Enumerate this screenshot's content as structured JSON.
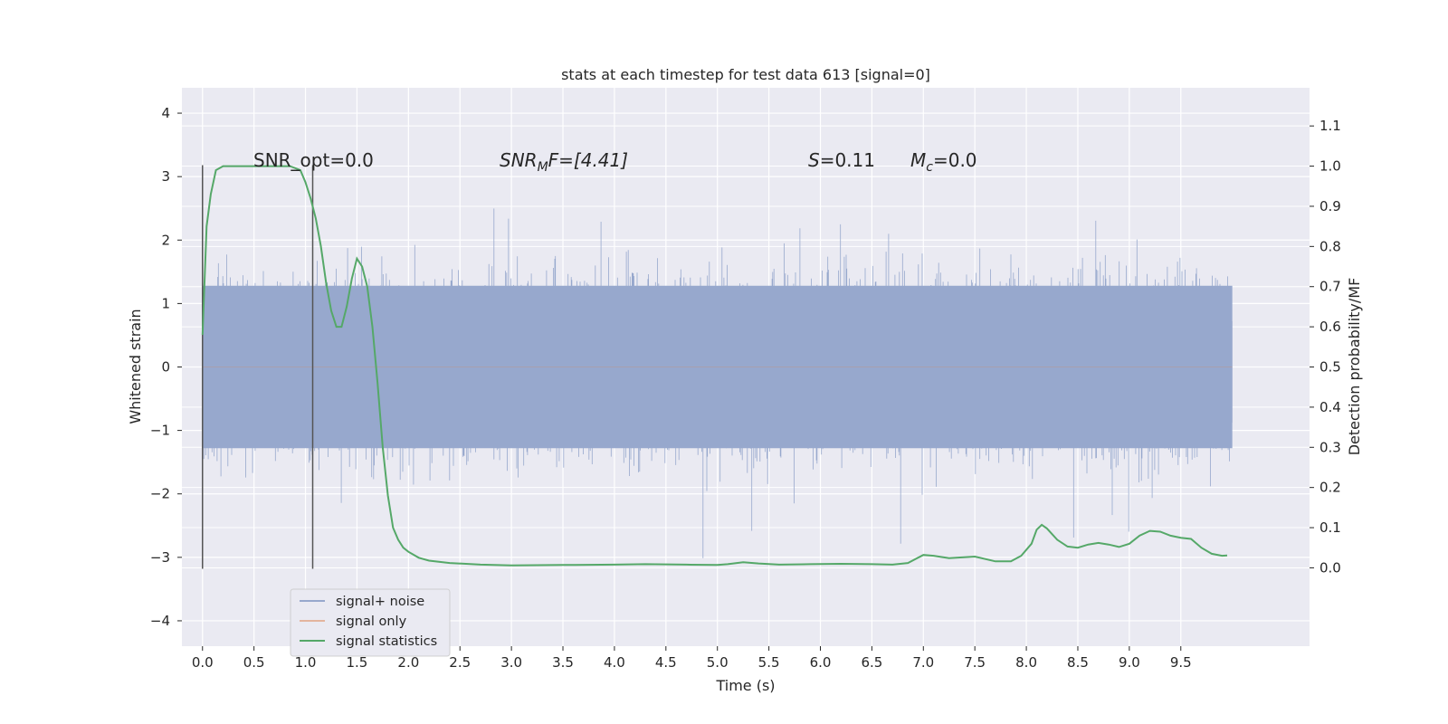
{
  "chart_data": {
    "type": "line",
    "title": "stats at each timestep for test data 613 [signal=0]",
    "xlabel": "Time (s)",
    "ylabel": "Whitened strain",
    "y2label": "Detection probability/MF",
    "xlim": [
      -0.2,
      10.75
    ],
    "ylim": [
      -4.4,
      4.4
    ],
    "y2lim": [
      -0.195,
      1.195
    ],
    "xticks": [
      "0.0",
      "0.5",
      "1.0",
      "1.5",
      "2.0",
      "2.5",
      "3.0",
      "3.5",
      "4.0",
      "4.5",
      "5.0",
      "5.5",
      "6.0",
      "6.5",
      "7.0",
      "7.5",
      "8.0",
      "8.5",
      "9.0",
      "9.5"
    ],
    "yticks": [
      "4",
      "3",
      "2",
      "1",
      "0",
      "−1",
      "−2",
      "−3",
      "−4"
    ],
    "y2ticks": [
      "1.1",
      "1.0",
      "0.9",
      "0.8",
      "0.7",
      "0.6",
      "0.5",
      "0.4",
      "0.3",
      "0.2",
      "0.1",
      "0.0"
    ],
    "grid": true,
    "legend_position": "lower-left",
    "annotations": {
      "snr_opt": "SNR_opt=0.0",
      "snr_mf_base": "SNR",
      "snr_mf_sub": "M",
      "snr_mf_rest": "F=[4.41]",
      "s_italic": "S",
      "s_value": "=0.11",
      "mc_base": "M",
      "mc_sub": "c",
      "mc_value": "=0.0"
    },
    "vertical_markers": [
      0.0,
      1.07
    ],
    "series": [
      {
        "name": "signal+ noise",
        "color": "#97a8cd",
        "axis": "left",
        "x_range": [
          0.0,
          10.0
        ],
        "envelope_p99": 1.9,
        "envelope_extreme": 3.5
      },
      {
        "name": "signal only",
        "color": "#dd8452",
        "axis": "left",
        "x": [
          0.0,
          10.0
        ],
        "y": [
          0.0,
          0.0
        ]
      },
      {
        "name": "signal statistics",
        "color": "#55a868",
        "axis": "right",
        "x": [
          0.0,
          0.04,
          0.08,
          0.13,
          0.2,
          0.3,
          0.5,
          0.7,
          0.85,
          0.95,
          1.0,
          1.05,
          1.1,
          1.15,
          1.2,
          1.25,
          1.3,
          1.35,
          1.4,
          1.45,
          1.5,
          1.55,
          1.6,
          1.65,
          1.7,
          1.75,
          1.8,
          1.85,
          1.9,
          1.95,
          2.0,
          2.1,
          2.2,
          2.4,
          2.7,
          3.0,
          3.5,
          4.0,
          4.3,
          4.7,
          5.0,
          5.1,
          5.25,
          5.4,
          5.6,
          5.9,
          6.2,
          6.5,
          6.7,
          6.85,
          7.0,
          7.1,
          7.25,
          7.5,
          7.7,
          7.85,
          7.95,
          8.05,
          8.1,
          8.15,
          8.2,
          8.3,
          8.4,
          8.5,
          8.6,
          8.7,
          8.8,
          8.9,
          9.0,
          9.1,
          9.2,
          9.3,
          9.4,
          9.5,
          9.6,
          9.7,
          9.8,
          9.9,
          9.95
        ],
        "y": [
          0.58,
          0.85,
          0.93,
          0.99,
          1.0,
          1.0,
          1.0,
          1.0,
          1.0,
          0.99,
          0.96,
          0.92,
          0.87,
          0.8,
          0.71,
          0.64,
          0.6,
          0.6,
          0.65,
          0.72,
          0.77,
          0.75,
          0.7,
          0.6,
          0.46,
          0.3,
          0.18,
          0.1,
          0.07,
          0.05,
          0.04,
          0.025,
          0.018,
          0.012,
          0.008,
          0.006,
          0.007,
          0.008,
          0.009,
          0.008,
          0.007,
          0.009,
          0.014,
          0.011,
          0.008,
          0.009,
          0.01,
          0.009,
          0.008,
          0.012,
          0.032,
          0.03,
          0.024,
          0.028,
          0.016,
          0.016,
          0.03,
          0.06,
          0.095,
          0.107,
          0.098,
          0.07,
          0.053,
          0.05,
          0.058,
          0.062,
          0.058,
          0.052,
          0.06,
          0.08,
          0.092,
          0.09,
          0.08,
          0.075,
          0.072,
          0.05,
          0.035,
          0.03,
          0.031
        ]
      }
    ]
  }
}
